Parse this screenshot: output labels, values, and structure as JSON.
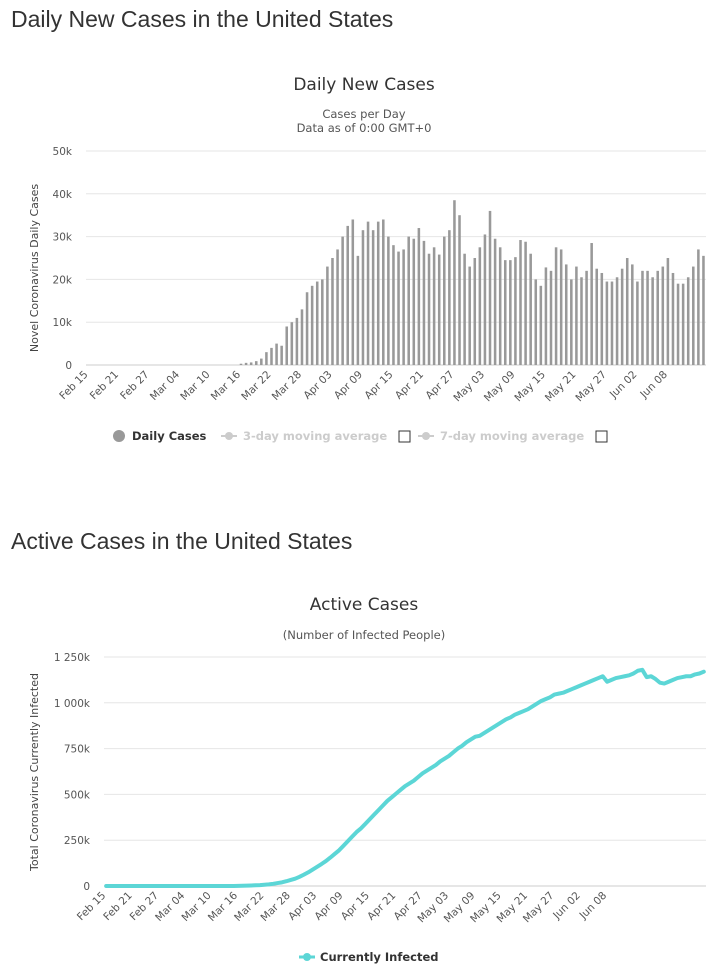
{
  "sections": [
    {
      "title": "Daily New Cases in the United States"
    },
    {
      "title": "Active Cases in the United States"
    }
  ],
  "charts": {
    "daily": {
      "title": "Daily New Cases",
      "subtitle": "Cases per Day",
      "subtitle2": "Data as of 0:00 GMT+0",
      "bar_color": "#999999",
      "legend": {
        "daily": "Daily Cases",
        "ma3": "3-day moving average",
        "ma7": "7-day moving average"
      }
    },
    "active": {
      "title": "Active Cases",
      "subtitle": "(Number of Infected People)",
      "line_color": "#5cd6d6",
      "legend": {
        "infected": "Currently Infected"
      }
    }
  },
  "chart_data": [
    {
      "type": "bar",
      "title": "Daily New Cases",
      "subtitle": "Cases per Day",
      "ylabel": "Novel Coronavirus Daily Cases",
      "ylim": [
        0,
        50000
      ],
      "yticks": [
        0,
        10000,
        20000,
        30000,
        40000,
        50000
      ],
      "ytick_labels": [
        "0",
        "10k",
        "20k",
        "30k",
        "40k",
        "50k"
      ],
      "xtick_labels": [
        "Feb 15",
        "Feb 21",
        "Feb 27",
        "Mar 04",
        "Mar 10",
        "Mar 16",
        "Mar 22",
        "Mar 28",
        "Apr 03",
        "Apr 09",
        "Apr 15",
        "Apr 21",
        "Apr 27",
        "May 03",
        "May 09",
        "May 15",
        "May 21",
        "May 27",
        "Jun 02",
        "Jun 08"
      ],
      "start_date": "Feb 15",
      "series": [
        {
          "name": "Daily Cases",
          "values": [
            0,
            0,
            0,
            0,
            0,
            0,
            0,
            0,
            0,
            0,
            0,
            0,
            0,
            0,
            0,
            0,
            0,
            0,
            0,
            0,
            0,
            0,
            0,
            0,
            0,
            0,
            0,
            0,
            0,
            0,
            300,
            500,
            600,
            900,
            1500,
            3000,
            4000,
            5000,
            4500,
            9000,
            10000,
            11000,
            13000,
            17000,
            18500,
            19500,
            20000,
            23000,
            25000,
            27000,
            30000,
            32500,
            34000,
            25500,
            31500,
            33500,
            31500,
            33500,
            34000,
            30000,
            28000,
            26500,
            27000,
            30000,
            29500,
            32000,
            29000,
            26000,
            27500,
            25800,
            30000,
            31500,
            38500,
            35000,
            26000,
            23000,
            25000,
            27500,
            30500,
            36000,
            29500,
            27500,
            24500,
            24500,
            25200,
            29200,
            28800,
            26000,
            20000,
            18500,
            22800,
            22000,
            27500,
            27000,
            23500,
            20000,
            23000,
            20500,
            22000,
            28500,
            22500,
            21500,
            19500,
            19500,
            20500,
            22500,
            25000,
            23500,
            19500,
            22000,
            22000,
            20500,
            22000,
            23000,
            25000,
            21500,
            19000,
            19000,
            20500,
            23000,
            27000,
            25500
          ]
        },
        {
          "name": "3-day moving average",
          "values": []
        },
        {
          "name": "7-day moving average",
          "values": []
        }
      ]
    },
    {
      "type": "line",
      "title": "Active Cases",
      "subtitle": "(Number of Infected People)",
      "ylabel": "Total Coronavirus Currently Infected",
      "ylim": [
        0,
        1250000
      ],
      "yticks": [
        0,
        250000,
        500000,
        750000,
        1000000,
        1250000
      ],
      "ytick_labels": [
        "0",
        "250k",
        "500k",
        "750k",
        "1 000k",
        "1 250k"
      ],
      "xtick_labels": [
        "Feb 15",
        "Feb 21",
        "Feb 27",
        "Mar 04",
        "Mar 10",
        "Mar 16",
        "Mar 22",
        "Mar 28",
        "Apr 03",
        "Apr 09",
        "Apr 15",
        "Apr 21",
        "Apr 27",
        "May 03",
        "May 09",
        "May 15",
        "May 21",
        "May 27",
        "Jun 02",
        "Jun 08"
      ],
      "series": [
        {
          "name": "Currently Infected",
          "values": [
            0,
            0,
            0,
            0,
            0,
            0,
            0,
            0,
            0,
            0,
            0,
            0,
            0,
            0,
            0,
            0,
            0,
            0,
            0,
            0,
            0,
            0,
            0,
            0,
            0,
            0,
            0,
            0,
            0,
            0,
            1000,
            1500,
            2000,
            3000,
            4000,
            5000,
            7000,
            9000,
            12000,
            16000,
            20000,
            26000,
            33000,
            40000,
            50000,
            62000,
            75000,
            90000,
            105000,
            120000,
            136000,
            155000,
            175000,
            195000,
            220000,
            245000,
            270000,
            295000,
            315000,
            340000,
            365000,
            390000,
            415000,
            440000,
            465000,
            485000,
            505000,
            525000,
            545000,
            560000,
            575000,
            595000,
            615000,
            630000,
            645000,
            660000,
            680000,
            695000,
            710000,
            730000,
            750000,
            765000,
            785000,
            800000,
            815000,
            820000,
            835000,
            850000,
            865000,
            880000,
            895000,
            910000,
            920000,
            935000,
            945000,
            955000,
            965000,
            980000,
            995000,
            1010000,
            1020000,
            1030000,
            1045000,
            1050000,
            1055000,
            1065000,
            1075000,
            1085000,
            1095000,
            1105000,
            1115000,
            1125000,
            1135000,
            1145000,
            1115000,
            1125000,
            1135000,
            1140000,
            1145000,
            1150000,
            1160000,
            1175000,
            1180000,
            1140000,
            1145000,
            1130000,
            1110000,
            1105000,
            1115000,
            1125000,
            1135000,
            1140000,
            1145000,
            1145000,
            1155000,
            1160000,
            1170000
          ]
        }
      ]
    }
  ]
}
